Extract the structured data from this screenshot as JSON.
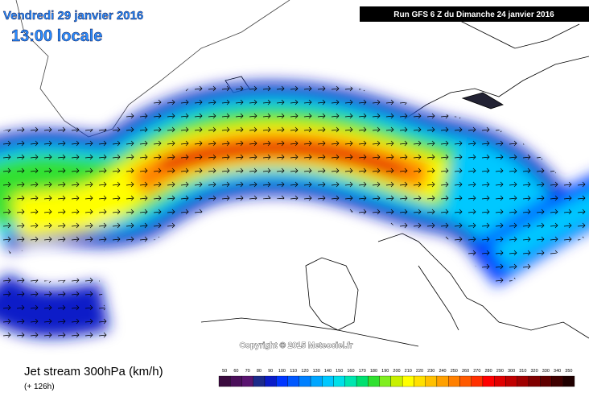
{
  "header": {
    "date": "Vendredi 29 janvier 2016",
    "time": "13:00 locale",
    "run": "Run GFS 6 Z du Dimanche 24 janvier 2016"
  },
  "copyright": "Copyright © 2015 Meteociel.fr",
  "footer": {
    "title": "Jet stream 300hPa (km/h)",
    "lead": "(+ 126h)"
  },
  "legend": {
    "labels": [
      50,
      60,
      70,
      80,
      90,
      100,
      110,
      120,
      130,
      140,
      150,
      160,
      170,
      180,
      190,
      200,
      210,
      220,
      230,
      240,
      250,
      260,
      270,
      280,
      290,
      300,
      310,
      320,
      330,
      340,
      350
    ],
    "colors": [
      "#3a0a3e",
      "#4b0f5a",
      "#5a1470",
      "#1c2a8a",
      "#0a1cc8",
      "#0036ff",
      "#0058ff",
      "#0080ff",
      "#00a6ff",
      "#00c8ff",
      "#00e0e8",
      "#00e6b0",
      "#00e070",
      "#30e030",
      "#80ee20",
      "#c8f000",
      "#ffff00",
      "#ffe000",
      "#ffc000",
      "#ffa000",
      "#ff8000",
      "#ff5a00",
      "#ff3000",
      "#ff0000",
      "#e00000",
      "#c00000",
      "#a00000",
      "#800000",
      "#600000",
      "#400000",
      "#200000"
    ]
  }
}
